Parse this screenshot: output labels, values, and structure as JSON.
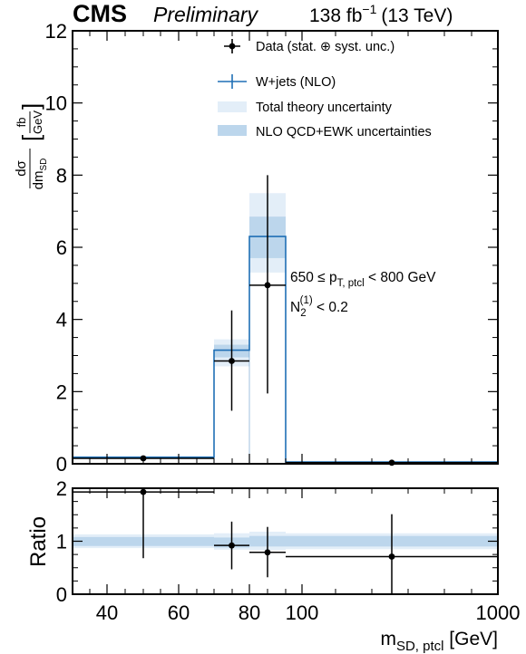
{
  "header": {
    "experiment": "CMS",
    "status": "Preliminary",
    "lumi_value": "138 fb",
    "lumi_exp": "−1",
    "energy": "(13 TeV)"
  },
  "legend": {
    "data": "Data (stat. ⊕ syst. unc.)",
    "mc": "W+jets (NLO)",
    "theory": "Total theory uncertainty",
    "qcdewk": "NLO QCD+EWK uncertainties"
  },
  "annotation": {
    "line1_a": "650 ≤ p",
    "line1_sub": "T, ptcl",
    "line1_b": " < 800 GeV",
    "line2_a": "N",
    "line2_sub": "2",
    "line2_sup": "(1)",
    "line2_b": " < 0.2"
  },
  "axes": {
    "y_main_num": "dσ",
    "y_main_den_a": "dm",
    "y_main_den_sub": "SD",
    "y_main_unit_num": "fb",
    "y_main_unit_den": "GeV",
    "y_ratio": "Ratio",
    "x_a": "m",
    "x_sub": "SD, ptcl",
    "x_unit": " [GeV]"
  },
  "colors": {
    "mc_line": "#1f6fb5",
    "theory_band": "#e3eef8",
    "qcdewk_band": "#bcd6ec",
    "data": "#000000"
  },
  "chart_data": [
    {
      "type": "histogram",
      "panel": "main",
      "bin_edges": [
        "~30",
        "70",
        "80",
        "90",
        "1000"
      ],
      "x_tick_labels": [
        "40",
        "60",
        "80",
        "100",
        "1000"
      ],
      "y_tick_labels": [
        "0",
        "2",
        "4",
        "6",
        "8",
        "10",
        "12"
      ],
      "ylim": [
        0,
        12
      ],
      "series": [
        {
          "name": "W+jets (NLO)",
          "values": [
            0.18,
            3.15,
            6.3,
            0.05
          ],
          "theory_band": [
            [
              0.14,
              0.22
            ],
            [
              2.7,
              3.45
            ],
            [
              5.3,
              7.5
            ],
            [
              0.03,
              0.07
            ]
          ],
          "qcdewk_band": [
            [
              0.16,
              0.2
            ],
            [
              2.95,
              3.3
            ],
            [
              5.7,
              6.85
            ],
            [
              0.04,
              0.06
            ]
          ]
        },
        {
          "name": "Data (stat. ⊕ syst. unc.)",
          "values": [
            0.15,
            2.85,
            4.95,
            0.03
          ],
          "err_low": [
            0.05,
            1.38,
            3.0,
            0.02
          ],
          "err_high": [
            0.05,
            1.4,
            3.05,
            0.02
          ]
        }
      ]
    },
    {
      "type": "ratio",
      "panel": "ratio",
      "ylabel": "Ratio",
      "y_tick_labels": [
        "0",
        "1",
        "2"
      ],
      "ylim": [
        0,
        2
      ],
      "values": [
        1.93,
        0.92,
        0.79,
        0.71
      ],
      "err_low": [
        1.25,
        0.45,
        0.47,
        0.8
      ],
      "err_high": [
        0.07,
        0.45,
        0.48,
        0.8
      ],
      "theory_band": [
        [
          0.87,
          1.13
        ],
        [
          0.84,
          1.15
        ],
        [
          0.83,
          1.18
        ],
        [
          0.85,
          1.15
        ]
      ],
      "qcdewk_band": [
        [
          0.91,
          1.08
        ],
        [
          0.88,
          1.07
        ],
        [
          0.9,
          1.1
        ],
        [
          0.9,
          1.1
        ]
      ]
    }
  ]
}
